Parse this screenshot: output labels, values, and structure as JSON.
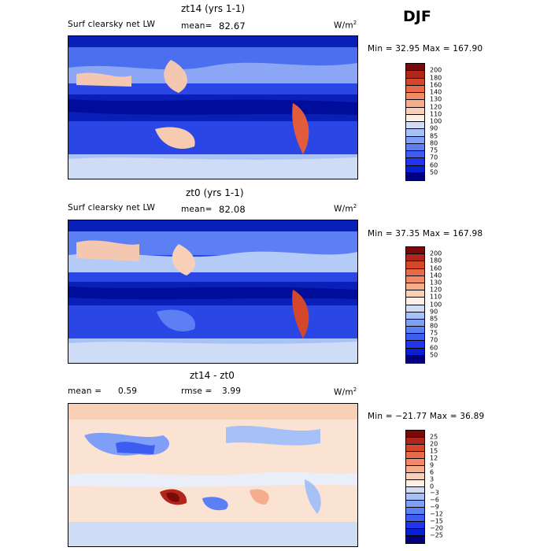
{
  "season": "DJF",
  "colors": {
    "abs_scale": [
      "#000080",
      "#0a1fd0",
      "#2036ee",
      "#3c5cf2",
      "#5d7ff4",
      "#7f9ff6",
      "#a6c0f8",
      "#cfdcf6",
      "#fdf0e6",
      "#f8d0b8",
      "#f4ae8e",
      "#ee8a66",
      "#e66b46",
      "#d3472a",
      "#b0261a",
      "#7a0a0a"
    ],
    "diff_scale": [
      "#000080",
      "#0a1fd0",
      "#2036ee",
      "#3c5cf2",
      "#5d7ff4",
      "#7f9ff6",
      "#a6c0f8",
      "#cfdcf6",
      "#fdf0e6",
      "#f8d0b8",
      "#f4ae8e",
      "#ee8a66",
      "#e66b46",
      "#d3472a",
      "#b0261a",
      "#7a0a0a"
    ]
  },
  "panels": [
    {
      "title": "zt14 (yrs 1-1)",
      "left_label": "Surf clearsky net LW",
      "mean_label": "mean=",
      "mean_value": "82.67",
      "rmse_label": "",
      "rmse_value": "",
      "units": "W/m",
      "units_sup": "2",
      "minmax": "Min =  32.95 Max = 167.90",
      "levels": [
        "200",
        "180",
        "160",
        "140",
        "130",
        "120",
        "110",
        "100",
        "90",
        "85",
        "80",
        "75",
        "70",
        "60",
        "50"
      ],
      "scale": "abs_scale"
    },
    {
      "title": "zt0 (yrs 1-1)",
      "left_label": "Surf clearsky net LW",
      "mean_label": "mean=",
      "mean_value": "82.08",
      "rmse_label": "",
      "rmse_value": "",
      "units": "W/m",
      "units_sup": "2",
      "minmax": "Min =  37.35 Max = 167.98",
      "levels": [
        "200",
        "180",
        "160",
        "140",
        "130",
        "120",
        "110",
        "100",
        "90",
        "85",
        "80",
        "75",
        "70",
        "60",
        "50"
      ],
      "scale": "abs_scale"
    },
    {
      "title": "zt14 - zt0",
      "left_label": "mean =",
      "mean_label": "",
      "mean_value": "0.59",
      "rmse_label": "rmse =",
      "rmse_value": "3.99",
      "units": "W/m",
      "units_sup": "2",
      "minmax": "Min = −21.77 Max =  36.89",
      "levels": [
        "25",
        "20",
        "15",
        "12",
        "9",
        "6",
        "3",
        "0",
        "−3",
        "−6",
        "−9",
        "−12",
        "−15",
        "−20",
        "−25"
      ],
      "scale": "diff_scale"
    }
  ]
}
